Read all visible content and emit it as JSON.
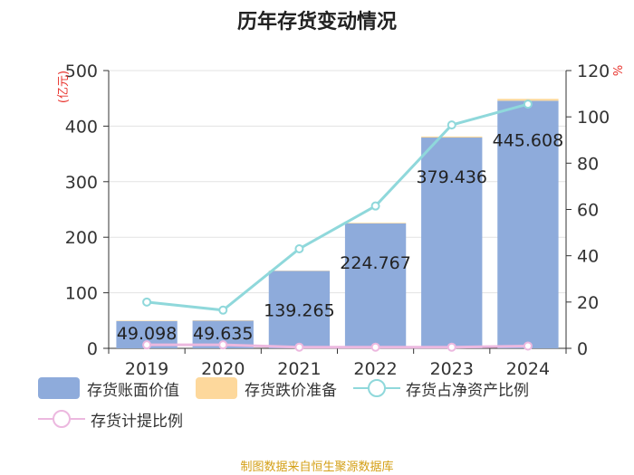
{
  "title": "历年存货变动情况",
  "source": "制图数据来自恒生聚源数据库",
  "colors": {
    "bar_book": "#8eabdb",
    "bar_reserve": "#fdd89c",
    "line_ratio": "#8fd8db",
    "line_provision": "#ecb8df",
    "left_unit": "#e8312b",
    "right_unit": "#e8312b",
    "source": "#d4a017"
  },
  "legend": [
    {
      "label": "存货账面价值",
      "kind": "bar",
      "color": "#8eabdb",
      "icon": "bar-swatch-icon"
    },
    {
      "label": "存货跌价准备",
      "kind": "bar",
      "color": "#fdd89c",
      "icon": "bar-swatch-icon"
    },
    {
      "label": "存货占净资产比例",
      "kind": "line",
      "color": "#8fd8db",
      "icon": "line-marker-icon"
    },
    {
      "label": "存货计提比例",
      "kind": "line",
      "color": "#ecb8df",
      "icon": "line-marker-icon"
    }
  ],
  "chart_data": {
    "type": "bar",
    "categories": [
      "2019",
      "2020",
      "2021",
      "2022",
      "2023",
      "2024"
    ],
    "series": [
      {
        "name": "存货账面价值",
        "type": "bar",
        "axis": "left",
        "values": [
          49.098,
          49.635,
          139.265,
          224.767,
          379.436,
          445.608
        ]
      },
      {
        "name": "存货跌价准备",
        "type": "bar",
        "axis": "left",
        "values": [
          0.8,
          0.8,
          0.6,
          1.2,
          1.8,
          3.5
        ]
      },
      {
        "name": "存货占净资产比例",
        "type": "line",
        "axis": "right",
        "values": [
          20.0,
          16.5,
          43.0,
          61.5,
          96.5,
          105.5
        ]
      },
      {
        "name": "存货计提比例",
        "type": "line",
        "axis": "right",
        "values": [
          1.5,
          1.5,
          0.5,
          0.5,
          0.5,
          1.0
        ]
      }
    ],
    "data_labels": [
      "49.098",
      "49.635",
      "139.265",
      "224.767",
      "379.436",
      "445.608"
    ],
    "left_axis": {
      "label": "(亿元)",
      "ticks": [
        "0",
        "100",
        "200",
        "300",
        "400",
        "500"
      ],
      "min": 0,
      "max": 500
    },
    "right_axis": {
      "label": "%",
      "ticks": [
        "0",
        "20",
        "40",
        "60",
        "80",
        "100",
        "120"
      ],
      "min": 0,
      "max": 120
    },
    "grid": true,
    "legend_position": "bottom"
  }
}
